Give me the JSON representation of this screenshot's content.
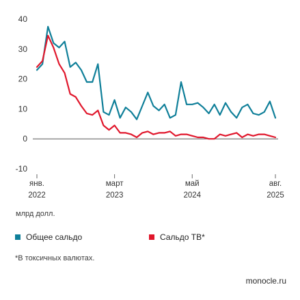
{
  "chart_data": {
    "type": "line",
    "ylim": [
      -10,
      40
    ],
    "y_ticks": [
      -10,
      0,
      10,
      20,
      30,
      40
    ],
    "grid": false,
    "x_tick_labels": [
      {
        "month": "янв.",
        "year": "2022",
        "index": 0
      },
      {
        "month": "март",
        "year": "2023",
        "index": 14
      },
      {
        "month": "май",
        "year": "2024",
        "index": 28
      },
      {
        "month": "авг.",
        "year": "2025",
        "index": 43
      }
    ],
    "unit_label": "млрд долл.",
    "series": [
      {
        "name": "Общее сальдо",
        "color": "#0f7f99",
        "values": [
          23,
          25,
          37.5,
          32,
          30.5,
          32.5,
          24,
          25.5,
          23,
          19,
          19,
          25,
          9,
          8,
          13,
          7,
          10.5,
          9,
          6.5,
          11,
          15.5,
          11,
          9.5,
          11.5,
          7,
          8,
          19,
          11.5,
          11.5,
          12,
          10.5,
          8.5,
          11.5,
          8,
          12,
          9,
          7,
          10.5,
          11.5,
          8.5,
          8,
          9,
          12.5,
          7
        ]
      },
      {
        "name": "Сальдо ТВ*",
        "color": "#e0162b",
        "values": [
          24,
          26,
          34.5,
          30.5,
          25,
          22,
          15,
          14,
          11,
          8.5,
          8,
          9.5,
          4.5,
          3,
          4.5,
          2,
          2,
          1.5,
          0.5,
          2,
          2.5,
          1.5,
          2,
          2,
          2.5,
          1,
          1.5,
          1.5,
          1,
          0.5,
          0.5,
          0,
          0,
          1.5,
          1,
          1.5,
          2,
          0.5,
          1.5,
          1,
          1.5,
          1.5,
          1,
          0.5
        ]
      }
    ]
  },
  "legend": {
    "items": [
      {
        "label": "Общее сальдо",
        "color": "#0f7f99"
      },
      {
        "label": "Сальдо ТВ*",
        "color": "#e0162b"
      }
    ]
  },
  "footnote": "*В токсичных валютах.",
  "source": "monocle.ru"
}
